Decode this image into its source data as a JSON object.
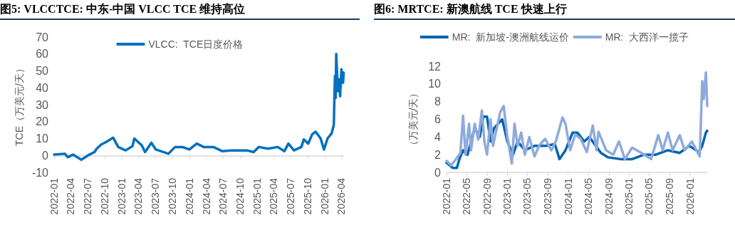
{
  "chart_data": [
    {
      "type": "line",
      "title": "图5:  VLCCTCE:  中东-中国 VLCC TCE 维持高位",
      "ylabel": "TCE（万美元/天）",
      "legend": "top",
      "grid": false,
      "marker": "none",
      "line_style": "solid",
      "xlim": [
        "2022-01-01",
        "2026-04-15"
      ],
      "xticks": [
        "2022-01",
        "2022-04",
        "2022-07",
        "2022-10",
        "2023-01",
        "2023-04",
        "2023-07",
        "2023-10",
        "2024-01",
        "2024-04",
        "2024-07",
        "2024-10",
        "2025-01",
        "2025-04",
        "2025-07",
        "2025-10",
        "2026-01",
        "2026-04"
      ],
      "ylim": [
        -10,
        70
      ],
      "yticks": [
        -10,
        0,
        10,
        20,
        30,
        40,
        50,
        60,
        70
      ],
      "series": [
        {
          "name": "VLCC:  TCE日度价格",
          "color": "#0070c0",
          "x": [
            "2022-01-01",
            "2022-02-28",
            "2022-03-16",
            "2022-04-13",
            "2022-05-28",
            "2022-07-10",
            "2022-08-07",
            "2022-08-19",
            "2022-09-13",
            "2022-10-10",
            "2022-11-16",
            "2022-12-13",
            "2023-01-22",
            "2023-02-28",
            "2023-03-10",
            "2023-04-19",
            "2023-05-07",
            "2023-06-10",
            "2023-07-04",
            "2023-09-10",
            "2023-10-16",
            "2023-11-25",
            "2024-01-01",
            "2024-02-10",
            "2024-03-19",
            "2024-05-10",
            "2024-06-28",
            "2024-08-19",
            "2024-11-07",
            "2024-12-13",
            "2025-01-10",
            "2025-03-01",
            "2025-04-22",
            "2025-05-28",
            "2025-06-19",
            "2025-07-19",
            "2025-08-28",
            "2025-09-10",
            "2025-10-04",
            "2025-10-25",
            "2025-11-13",
            "2025-12-10",
            "2025-12-28",
            "2026-01-16",
            "2026-02-07",
            "2026-02-19",
            "2026-02-25",
            "2026-03-01",
            "2026-03-04",
            "2026-03-13",
            "2026-03-19",
            "2026-03-25",
            "2026-04-01",
            "2026-04-10",
            "2026-04-13"
          ],
          "values": [
            0.5,
            1,
            -1,
            0.5,
            -2.5,
            0.5,
            2,
            4,
            6.5,
            8,
            10.5,
            5,
            3,
            5.5,
            10,
            6,
            2,
            7.5,
            3.5,
            1,
            5,
            5,
            3.5,
            7,
            5,
            5,
            2.5,
            3,
            3,
            2,
            5,
            4,
            5,
            2.5,
            7,
            3,
            5,
            9.5,
            7,
            12.5,
            14,
            10,
            3.5,
            10,
            13,
            18,
            47,
            34,
            60,
            38,
            45,
            35,
            51,
            43,
            49
          ]
        }
      ]
    },
    {
      "type": "line",
      "title": "图6:  MRTCE:  新澳航线 TCE 快速上行",
      "ylabel": "（万美元/天）",
      "legend": "top",
      "grid": false,
      "marker": "none",
      "line_style": "solid",
      "xlim": [
        "2022-01-01",
        "2026-04-15"
      ],
      "xticks": [
        "2022-01",
        "2022-05",
        "2022-09",
        "2023-01",
        "2023-05",
        "2023-09",
        "2024-01",
        "2024-05",
        "2024-09",
        "2025-01",
        "2025-05",
        "2025-09",
        "2026-01"
      ],
      "ylim": [
        0,
        12
      ],
      "yticks": [
        0,
        2,
        4,
        6,
        8,
        10,
        12
      ],
      "series": [
        {
          "name": "MR:  新加坡-澳洲航线运价",
          "color": "#0063b1",
          "x": [
            "2022-01-01",
            "2022-02-07",
            "2022-03-04",
            "2022-03-19",
            "2022-04-10",
            "2022-05-07",
            "2022-05-28",
            "2022-06-19",
            "2022-07-19",
            "2022-08-10",
            "2022-09-01",
            "2022-09-22",
            "2022-10-13",
            "2022-12-01",
            "2023-01-01",
            "2023-02-04",
            "2023-03-04",
            "2023-04-16",
            "2023-06-13",
            "2023-08-22",
            "2023-10-13",
            "2023-11-10",
            "2023-12-16",
            "2024-01-28",
            "2024-02-25",
            "2024-04-07",
            "2024-05-07",
            "2024-07-16",
            "2024-08-28",
            "2024-11-10",
            "2025-01-19",
            "2025-04-01",
            "2025-06-10",
            "2025-08-22",
            "2025-11-01",
            "2025-12-28",
            "2026-02-25",
            "2026-03-16",
            "2026-04-07",
            "2026-04-15"
          ],
          "values": [
            1.1,
            0.5,
            0.5,
            1.5,
            2.5,
            2,
            3.5,
            5,
            4,
            6.3,
            6.3,
            3.5,
            5,
            6,
            3.5,
            2,
            3.5,
            2.5,
            3,
            3,
            3.2,
            1.5,
            2.5,
            4.5,
            4.5,
            3.5,
            4,
            2.2,
            1.7,
            1.5,
            1.5,
            2,
            2,
            2.5,
            2.2,
            3,
            2.3,
            3,
            4.5,
            4.7
          ]
        },
        {
          "name": "MR:  大西洋一揽子",
          "color": "#8eaadc",
          "x": [
            "2022-01-01",
            "2022-01-28",
            "2022-02-27",
            "2022-03-25",
            "2022-04-10",
            "2022-04-25",
            "2022-05-16",
            "2022-05-28",
            "2022-06-19",
            "2022-07-10",
            "2022-08-01",
            "2022-08-16",
            "2022-09-01",
            "2022-09-22",
            "2022-10-07",
            "2022-11-19",
            "2022-12-10",
            "2023-01-01",
            "2023-01-28",
            "2023-02-13",
            "2023-03-04",
            "2023-03-25",
            "2023-04-16",
            "2023-05-13",
            "2023-06-13",
            "2023-07-10",
            "2023-08-16",
            "2023-09-22",
            "2023-10-19",
            "2023-11-28",
            "2023-12-16",
            "2024-01-13",
            "2024-02-13",
            "2024-03-16",
            "2024-04-22",
            "2024-05-28",
            "2024-06-19",
            "2024-07-01",
            "2024-08-16",
            "2024-09-28",
            "2024-11-01",
            "2024-12-07",
            "2025-01-19",
            "2025-03-16",
            "2025-05-13",
            "2025-06-25",
            "2025-07-22",
            "2025-08-22",
            "2025-09-19",
            "2025-11-01",
            "2025-12-01",
            "2026-01-13",
            "2026-03-01",
            "2026-03-16",
            "2026-03-25",
            "2026-04-07",
            "2026-04-15"
          ],
          "values": [
            1.3,
            0.8,
            1.5,
            2.2,
            6.4,
            2,
            5.5,
            2.5,
            5.5,
            3.7,
            7,
            3.5,
            2,
            6,
            3,
            6.8,
            7.5,
            4,
            1,
            5.5,
            3,
            4.5,
            2,
            4,
            1.8,
            3,
            3.8,
            2.5,
            3.5,
            6.2,
            5.5,
            2.5,
            4.3,
            3.8,
            2.3,
            5.3,
            2.5,
            4.6,
            2.5,
            2,
            3.5,
            1.5,
            2.8,
            2.2,
            1.5,
            4.2,
            2.5,
            4.5,
            2.5,
            4.2,
            2.5,
            3.5,
            1.8,
            10.3,
            8.3,
            11.3,
            7.5
          ]
        }
      ]
    }
  ]
}
